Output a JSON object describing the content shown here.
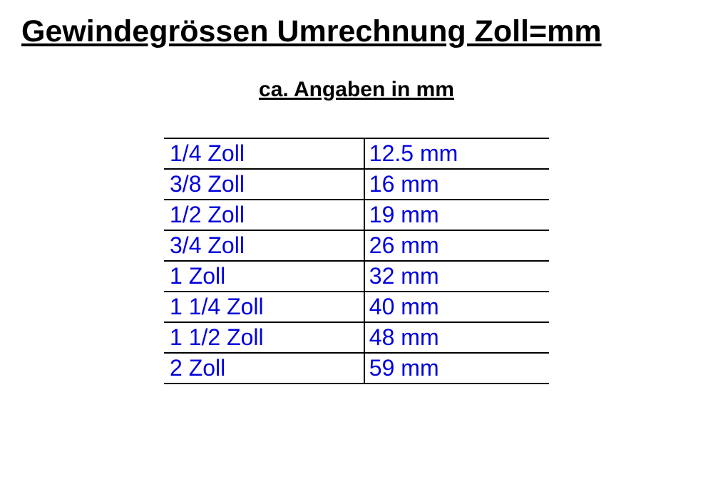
{
  "title": "Gewindegrössen Umrechnung Zoll=mm",
  "subtitle": "ca. Angaben in mm",
  "table": {
    "text_color": "#0000dd",
    "border_color": "#000000",
    "background_color": "#ffffff",
    "font_size": 32,
    "rows": [
      {
        "zoll": "1/4 Zoll",
        "mm": "12.5 mm"
      },
      {
        "zoll": "3/8 Zoll",
        "mm": "16 mm"
      },
      {
        "zoll": "1/2 Zoll",
        "mm": "19 mm"
      },
      {
        "zoll": "3/4 Zoll",
        "mm": "26 mm"
      },
      {
        "zoll": "1 Zoll",
        "mm": "32 mm"
      },
      {
        "zoll": "1 1/4 Zoll",
        "mm": "40 mm"
      },
      {
        "zoll": "1 1/2 Zoll",
        "mm": "48 mm"
      },
      {
        "zoll": "2 Zoll",
        "mm": "59 mm"
      }
    ]
  }
}
